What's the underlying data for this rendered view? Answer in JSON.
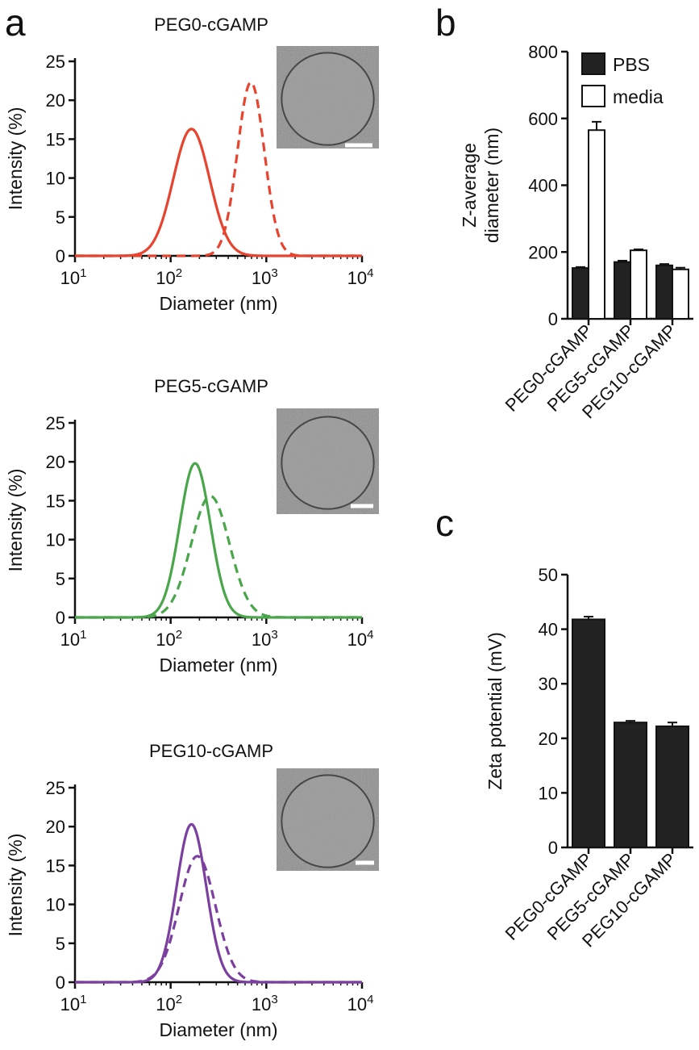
{
  "panel_letters": [
    "a",
    "b",
    "c"
  ],
  "colors": {
    "peg0": "#e8432e",
    "peg5": "#4aa64a",
    "peg10": "#7b3fa0",
    "bar_fill": "#222222",
    "bar_open": "#ffffff"
  },
  "chart_data": [
    {
      "id": "a1",
      "type": "line",
      "title": "PEG0-cGAMP",
      "xlabel": "Diameter (nm)",
      "ylabel": "Intensity (%)",
      "x_scale": "log",
      "xlim": [
        10,
        10000
      ],
      "ylim": [
        0,
        25
      ],
      "x_ticks": [
        "10",
        "100",
        "1000",
        "10000"
      ],
      "y_ticks": [
        "0",
        "5",
        "10",
        "15",
        "20",
        "25"
      ],
      "color": "#e8432e",
      "series": [
        {
          "style": "solid",
          "peak_diameter": 165,
          "peak_intensity": 16.3,
          "log_sigma": 0.19
        },
        {
          "style": "dashed",
          "peak_diameter": 690,
          "peak_intensity": 22.3,
          "log_sigma": 0.14
        }
      ],
      "inset": "cryo-TEM micrograph"
    },
    {
      "id": "a2",
      "type": "line",
      "title": "PEG5-cGAMP",
      "xlabel": "Diameter (nm)",
      "ylabel": "Intensity (%)",
      "x_scale": "log",
      "xlim": [
        10,
        10000
      ],
      "ylim": [
        0,
        25
      ],
      "x_ticks": [
        "10",
        "100",
        "1000",
        "10000"
      ],
      "y_ticks": [
        "0",
        "5",
        "10",
        "15",
        "20",
        "25"
      ],
      "color": "#4aa64a",
      "series": [
        {
          "style": "solid",
          "peak_diameter": 180,
          "peak_intensity": 19.8,
          "log_sigma": 0.16
        },
        {
          "style": "dashed",
          "peak_diameter": 260,
          "peak_intensity": 15.6,
          "log_sigma": 0.2
        }
      ],
      "inset": "cryo-TEM micrograph"
    },
    {
      "id": "a3",
      "type": "line",
      "title": "PEG10-cGAMP",
      "xlabel": "Diameter (nm)",
      "ylabel": "Intensity (%)",
      "x_scale": "log",
      "xlim": [
        10,
        10000
      ],
      "ylim": [
        0,
        25
      ],
      "x_ticks": [
        "10",
        "100",
        "1000",
        "10000"
      ],
      "y_ticks": [
        "0",
        "5",
        "10",
        "15",
        "20",
        "25"
      ],
      "color": "#7b3fa0",
      "series": [
        {
          "style": "solid",
          "peak_diameter": 165,
          "peak_intensity": 20.3,
          "log_sigma": 0.155
        },
        {
          "style": "dashed",
          "peak_diameter": 190,
          "peak_intensity": 16.2,
          "log_sigma": 0.19
        }
      ],
      "inset": "cryo-TEM micrograph"
    },
    {
      "id": "b",
      "type": "bar",
      "ylabel_lines": [
        "Z-average",
        "diameter (nm)"
      ],
      "ylim": [
        0,
        800
      ],
      "y_ticks": [
        "0",
        "200",
        "400",
        "600",
        "800"
      ],
      "categories": [
        "PEG0-cGAMP",
        "PEG5-cGAMP",
        "PEG10-cGAMP"
      ],
      "series": [
        {
          "name": "PBS",
          "fill": "#222222",
          "values": [
            152,
            170,
            160
          ],
          "errors": [
            3,
            4,
            4
          ]
        },
        {
          "name": "media",
          "fill": "#ffffff",
          "values": [
            565,
            205,
            148
          ],
          "errors": [
            25,
            3,
            5
          ]
        }
      ],
      "legend": "top-right"
    },
    {
      "id": "c",
      "type": "bar",
      "ylabel": "Zeta potential (mV)",
      "ylim": [
        0,
        50
      ],
      "y_ticks": [
        "0",
        "10",
        "20",
        "30",
        "40",
        "50"
      ],
      "categories": [
        "PEG0-cGAMP",
        "PEG5-cGAMP",
        "PEG10-cGAMP"
      ],
      "series": [
        {
          "fill": "#222222",
          "values": [
            41.8,
            22.9,
            22.2
          ],
          "errors": [
            0.5,
            0.3,
            0.7
          ]
        }
      ]
    }
  ]
}
